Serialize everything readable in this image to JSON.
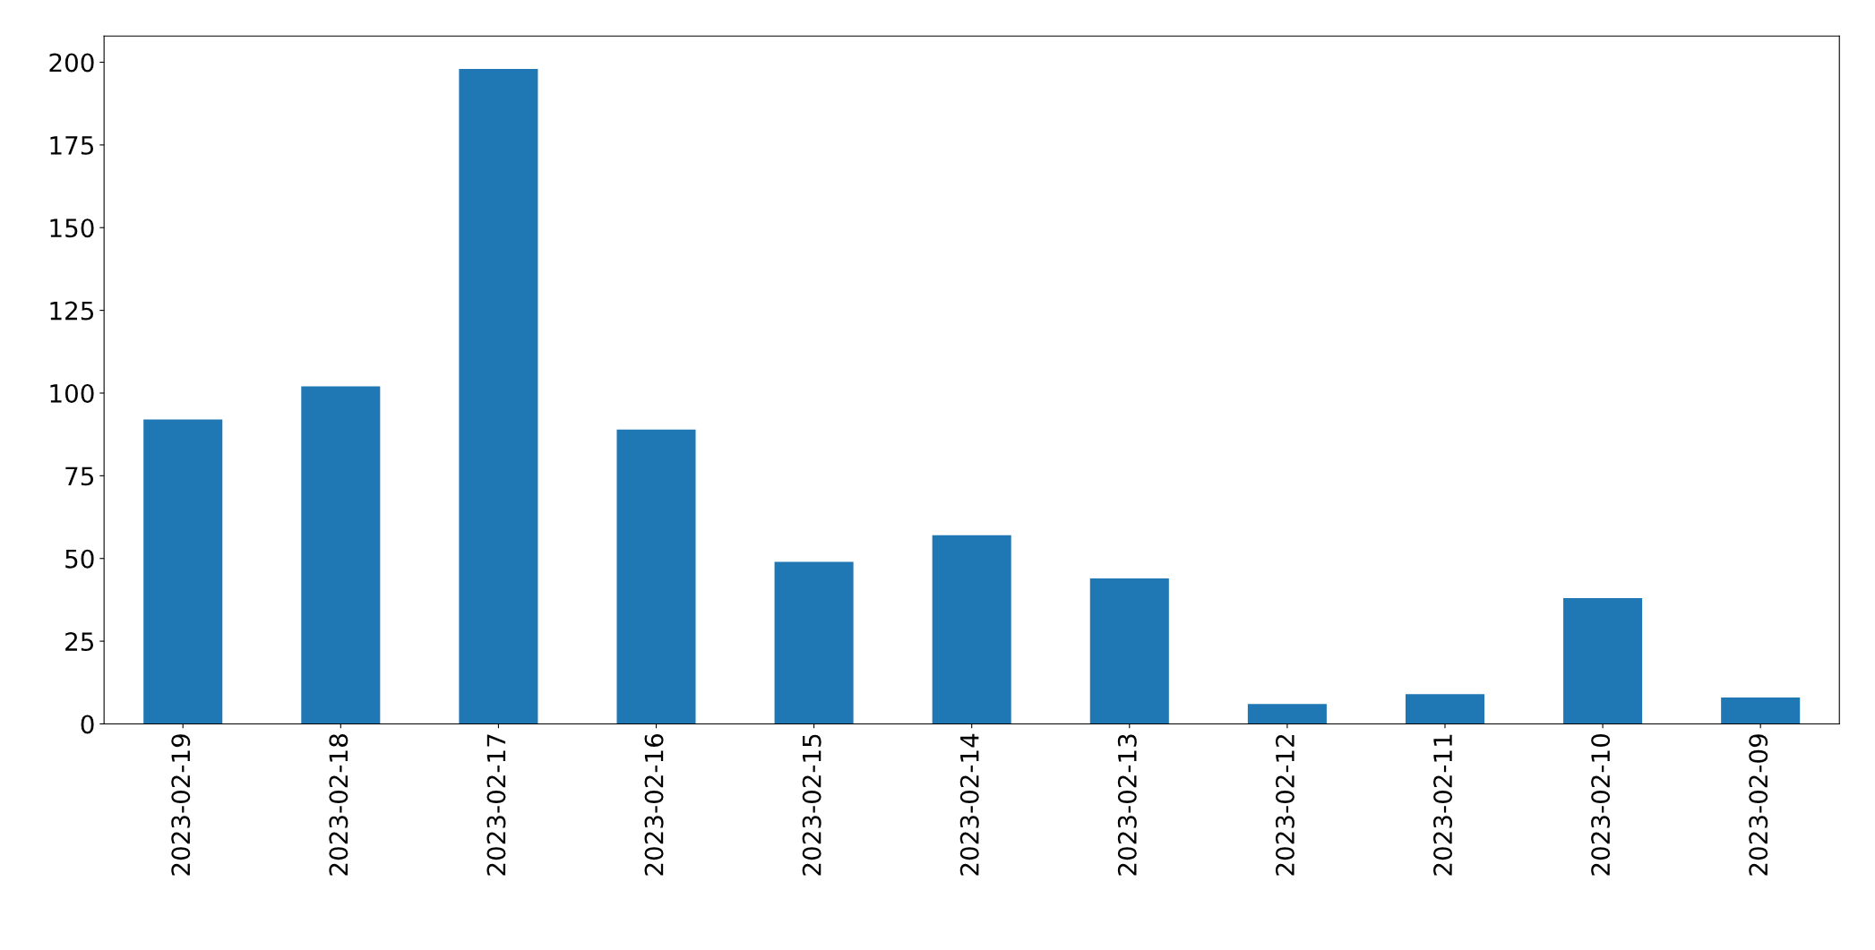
{
  "chart_data": {
    "type": "bar",
    "categories": [
      "2023-02-19",
      "2023-02-18",
      "2023-02-17",
      "2023-02-16",
      "2023-02-15",
      "2023-02-14",
      "2023-02-13",
      "2023-02-12",
      "2023-02-11",
      "2023-02-10",
      "2023-02-09"
    ],
    "values": [
      92,
      102,
      198,
      89,
      49,
      57,
      44,
      6,
      9,
      38,
      8
    ],
    "color": "#1f77b4",
    "ylim": [
      0,
      207.9
    ],
    "yticks": [
      0,
      25,
      50,
      75,
      100,
      125,
      150,
      175,
      200
    ],
    "grid": false,
    "legend": false
  }
}
